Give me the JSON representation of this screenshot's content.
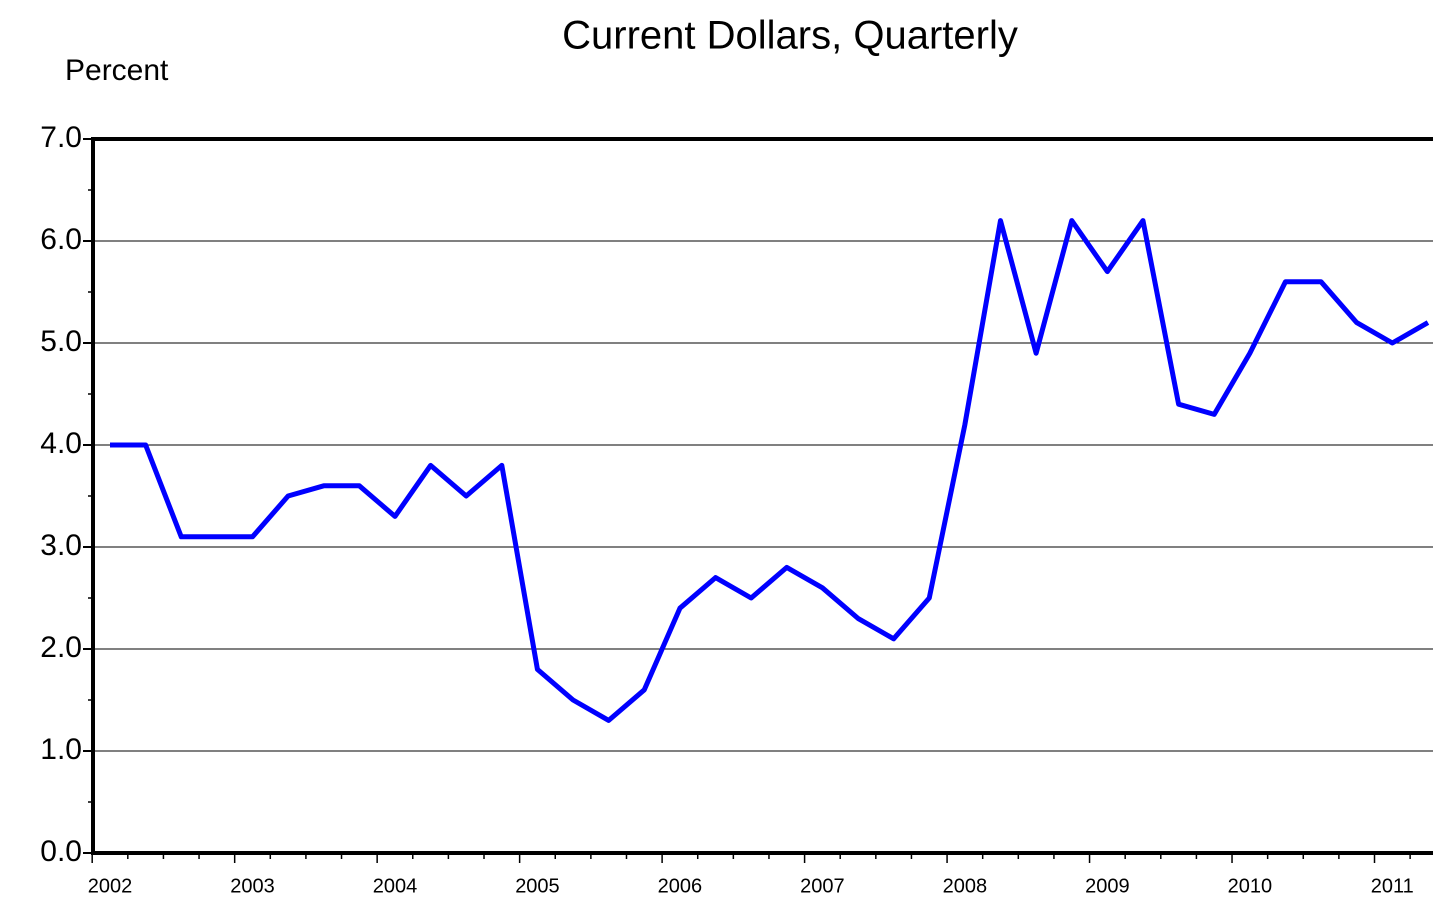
{
  "chart_data": {
    "type": "line",
    "title": "Current Dollars, Quarterly",
    "y_label": "Percent",
    "categories": [
      "2002",
      null,
      null,
      null,
      "2003",
      null,
      null,
      null,
      "2004",
      null,
      null,
      null,
      "2005",
      null,
      null,
      null,
      "2006",
      null,
      null,
      null,
      "2007",
      null,
      null,
      null,
      "2008",
      null,
      null,
      null,
      "2009",
      null,
      null,
      null,
      "2010",
      null,
      null,
      null,
      "2011",
      null
    ],
    "series": [
      {
        "name": "Current Dollars",
        "color": "#0000ff",
        "values": [
          4.0,
          4.0,
          3.1,
          3.1,
          3.1,
          3.5,
          3.6,
          3.6,
          3.3,
          3.8,
          3.5,
          3.8,
          1.8,
          1.5,
          1.3,
          1.6,
          2.4,
          2.7,
          2.5,
          2.8,
          2.6,
          2.3,
          2.1,
          2.5,
          4.2,
          6.2,
          4.9,
          6.2,
          5.7,
          6.2,
          4.4,
          4.3,
          4.9,
          5.6,
          5.6,
          5.2,
          5.0,
          5.2
        ]
      }
    ],
    "ylim": [
      0,
      7
    ],
    "yticks": [
      {
        "value": 0,
        "label": "0.0"
      },
      {
        "value": 1,
        "label": "1.0"
      },
      {
        "value": 2,
        "label": "2.0"
      },
      {
        "value": 3,
        "label": "3.0"
      },
      {
        "value": 4,
        "label": "4.0"
      },
      {
        "value": 5,
        "label": "5.0"
      },
      {
        "value": 6,
        "label": "6.0"
      },
      {
        "value": 7,
        "label": "7.0"
      }
    ],
    "grid": true
  }
}
